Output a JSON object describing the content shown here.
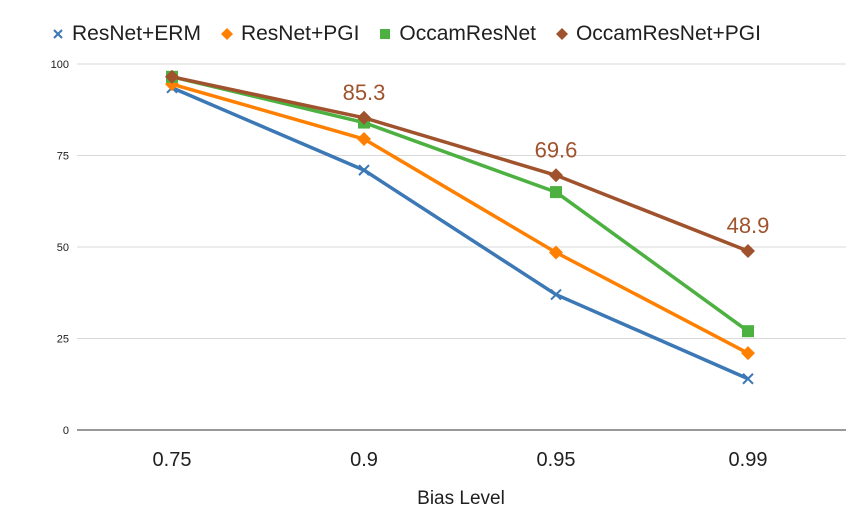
{
  "chart_data": {
    "type": "line",
    "title": "",
    "xlabel": "Bias Level",
    "ylabel": "",
    "categories": [
      "0.75",
      "0.9",
      "0.95",
      "0.99"
    ],
    "ylim": [
      0,
      100
    ],
    "yticks": [
      "0",
      "25",
      "50",
      "75",
      "100"
    ],
    "grid": true,
    "legend_position": "top",
    "series": [
      {
        "name": "ResNet+ERM",
        "values": [
          93.5,
          71,
          37,
          14
        ],
        "color": "#3c78b5",
        "marker": "x"
      },
      {
        "name": "ResNet+PGI",
        "values": [
          94.5,
          79.5,
          48.5,
          21
        ],
        "color": "#ff8000",
        "marker": "diamond"
      },
      {
        "name": "OccamResNet",
        "values": [
          96.5,
          84,
          65,
          27
        ],
        "color": "#4cb140",
        "marker": "square"
      },
      {
        "name": "OccamResNet+PGI",
        "values": [
          96.5,
          85.3,
          69.6,
          48.9
        ],
        "color": "#a0522d",
        "marker": "diamond"
      }
    ],
    "annotations": [
      {
        "series": "OccamResNet+PGI",
        "category": "0.9",
        "text": "85.3"
      },
      {
        "series": "OccamResNet+PGI",
        "category": "0.95",
        "text": "69.6"
      },
      {
        "series": "OccamResNet+PGI",
        "category": "0.99",
        "text": "48.9"
      }
    ]
  }
}
